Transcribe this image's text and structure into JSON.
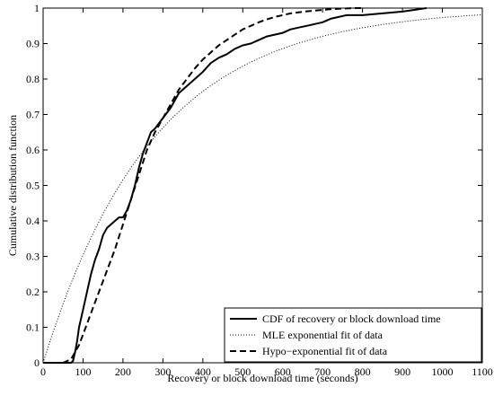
{
  "chart_data": {
    "type": "line",
    "xlabel": "Recovery or block download time (seconds)",
    "ylabel": "Cumulative distribution function",
    "xlim": [
      0,
      1100
    ],
    "ylim": [
      0,
      1
    ],
    "xticks": [
      "0",
      "100",
      "200",
      "300",
      "400",
      "500",
      "600",
      "700",
      "800",
      "900",
      "1000",
      "1100"
    ],
    "yticks": [
      "0",
      "0.1",
      "0.2",
      "0.3",
      "0.4",
      "0.5",
      "0.6",
      "0.7",
      "0.8",
      "0.9",
      "1"
    ],
    "grid": false,
    "legend_position": "bottom-right",
    "series": [
      {
        "name": "CDF of recovery or block download time",
        "style": "solid",
        "x": [
          0,
          70,
          75,
          80,
          85,
          90,
          100,
          110,
          120,
          130,
          140,
          150,
          160,
          170,
          180,
          190,
          200,
          210,
          220,
          230,
          240,
          250,
          260,
          270,
          280,
          290,
          300,
          320,
          340,
          360,
          380,
          400,
          420,
          440,
          460,
          480,
          500,
          520,
          540,
          560,
          580,
          600,
          620,
          640,
          660,
          680,
          700,
          720,
          740,
          760,
          780,
          800,
          850,
          900,
          930,
          960
        ],
        "y": [
          0,
          0,
          0.005,
          0.03,
          0.06,
          0.1,
          0.15,
          0.2,
          0.25,
          0.29,
          0.32,
          0.36,
          0.38,
          0.39,
          0.4,
          0.41,
          0.41,
          0.43,
          0.46,
          0.5,
          0.55,
          0.59,
          0.62,
          0.65,
          0.66,
          0.675,
          0.69,
          0.72,
          0.76,
          0.78,
          0.8,
          0.82,
          0.845,
          0.86,
          0.87,
          0.885,
          0.895,
          0.9,
          0.91,
          0.92,
          0.925,
          0.93,
          0.94,
          0.945,
          0.95,
          0.955,
          0.96,
          0.97,
          0.975,
          0.98,
          0.98,
          0.98,
          0.985,
          0.99,
          0.995,
          1.0
        ]
      },
      {
        "name": "MLE exponential fit of data",
        "style": "dotted",
        "x": [
          0,
          25,
          50,
          75,
          100,
          125,
          150,
          175,
          200,
          225,
          250,
          275,
          300,
          325,
          350,
          375,
          400,
          425,
          450,
          475,
          500,
          525,
          550,
          575,
          600,
          625,
          650,
          675,
          700,
          725,
          750,
          775,
          800,
          825,
          850,
          875,
          900,
          925,
          950,
          975,
          1000,
          1025,
          1050,
          1075,
          1100
        ],
        "y": [
          0,
          0.0868,
          0.1661,
          0.2385,
          0.3045,
          0.3648,
          0.4199,
          0.4702,
          0.5161,
          0.558,
          0.5962,
          0.6311,
          0.663,
          0.6921,
          0.7187,
          0.743,
          0.7652,
          0.7854,
          0.8039,
          0.8208,
          0.8362,
          0.8503,
          0.8632,
          0.875,
          0.8857,
          0.8956,
          0.9046,
          0.9129,
          0.9204,
          0.9273,
          0.9336,
          0.9393,
          0.9446,
          0.9494,
          0.9537,
          0.9577,
          0.9614,
          0.9647,
          0.9678,
          0.9706,
          0.9731,
          0.9754,
          0.9775,
          0.9794,
          0.9812
        ]
      },
      {
        "name": "Hypo−exponential fit of data",
        "style": "dashed",
        "x": [
          0,
          50,
          70,
          80,
          90,
          100,
          120,
          140,
          160,
          180,
          200,
          220,
          240,
          260,
          280,
          300,
          320,
          340,
          360,
          380,
          400,
          420,
          440,
          460,
          480,
          500,
          520,
          540,
          560,
          580,
          600,
          620,
          640,
          660,
          680,
          700,
          720,
          740,
          760,
          780,
          800
        ],
        "y": [
          0,
          0,
          0.01,
          0.03,
          0.05,
          0.08,
          0.14,
          0.2,
          0.26,
          0.32,
          0.39,
          0.46,
          0.53,
          0.6,
          0.65,
          0.69,
          0.73,
          0.77,
          0.8,
          0.83,
          0.855,
          0.875,
          0.895,
          0.91,
          0.925,
          0.94,
          0.95,
          0.96,
          0.968,
          0.975,
          0.98,
          0.985,
          0.988,
          0.991,
          0.993,
          0.995,
          0.997,
          0.998,
          0.999,
          1.0,
          1.0
        ]
      }
    ]
  }
}
